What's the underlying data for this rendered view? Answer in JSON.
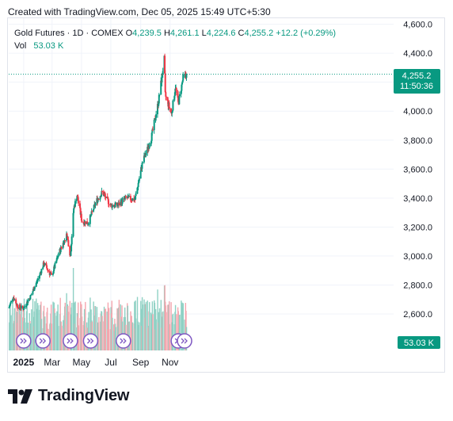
{
  "caption": "Created with TradingView.com, Dec 05, 2025 15:49 UTC+5:30",
  "legend": {
    "symbol": "Gold Futures · 1D · COMEX",
    "o_label": "O",
    "o_value": "4,239.5",
    "h_label": "H",
    "h_value": "4,261.1",
    "l_label": "L",
    "l_value": "4,224.6",
    "c_label": "C",
    "c_value": "4,255.2",
    "change": "+12.2 (+0.29%)",
    "vol_label": "Vol",
    "vol_value": "53.03 K"
  },
  "price_tag": {
    "price": "4,255.2",
    "countdown": "11:50:36"
  },
  "volume_tag": "53.03 K",
  "brand": "TradingView",
  "colors": {
    "up": "#089981",
    "down": "#f23645",
    "vol_up": "#8fd1c4",
    "vol_down": "#f5a6ae",
    "event": "#7e57c2"
  },
  "chart_data": {
    "type": "candlestick",
    "title": "Gold Futures · 1D · COMEX",
    "y_ticks": [
      "4,600.0",
      "4,400.0",
      "4,200.0",
      "4,000.0",
      "3,800.0",
      "3,600.0",
      "3,400.0",
      "3,200.0",
      "3,000.0",
      "2,800.0",
      "2,600.0"
    ],
    "x_ticks": [
      "2025",
      "Mar",
      "May",
      "Jul",
      "Sep",
      "Nov"
    ],
    "ylim": [
      2520,
      4620
    ],
    "last_close": 4255.2,
    "last_volume_k": 53.03,
    "anchors": [
      {
        "date": "2024-12-01",
        "close": 2640
      },
      {
        "date": "2024-12-10",
        "close": 2720
      },
      {
        "date": "2024-12-20",
        "close": 2650
      },
      {
        "date": "2025-01-01",
        "close": 2640
      },
      {
        "date": "2025-01-15",
        "close": 2720
      },
      {
        "date": "2025-02-01",
        "close": 2850
      },
      {
        "date": "2025-02-12",
        "close": 2950
      },
      {
        "date": "2025-02-28",
        "close": 2860
      },
      {
        "date": "2025-03-15",
        "close": 3020
      },
      {
        "date": "2025-04-01",
        "close": 3150
      },
      {
        "date": "2025-04-08",
        "close": 3000
      },
      {
        "date": "2025-04-15",
        "close": 3330
      },
      {
        "date": "2025-04-22",
        "close": 3420
      },
      {
        "date": "2025-05-02",
        "close": 3240
      },
      {
        "date": "2025-05-15",
        "close": 3230
      },
      {
        "date": "2025-06-01",
        "close": 3380
      },
      {
        "date": "2025-06-13",
        "close": 3440
      },
      {
        "date": "2025-07-01",
        "close": 3350
      },
      {
        "date": "2025-07-15",
        "close": 3350
      },
      {
        "date": "2025-08-01",
        "close": 3400
      },
      {
        "date": "2025-08-20",
        "close": 3390
      },
      {
        "date": "2025-09-05",
        "close": 3650
      },
      {
        "date": "2025-09-22",
        "close": 3800
      },
      {
        "date": "2025-10-08",
        "close": 4070
      },
      {
        "date": "2025-10-20",
        "close": 4360
      },
      {
        "date": "2025-10-22",
        "close": 4110
      },
      {
        "date": "2025-11-04",
        "close": 3980
      },
      {
        "date": "2025-11-12",
        "close": 4170
      },
      {
        "date": "2025-11-18",
        "close": 4050
      },
      {
        "date": "2025-11-28",
        "close": 4230
      },
      {
        "date": "2025-12-05",
        "close": 4255.2
      }
    ],
    "events": [
      "2025-01-01",
      "2025-02-10",
      "2025-04-08",
      "2025-05-20",
      "2025-07-27",
      "2025-11-18",
      "2025-12-01"
    ]
  }
}
